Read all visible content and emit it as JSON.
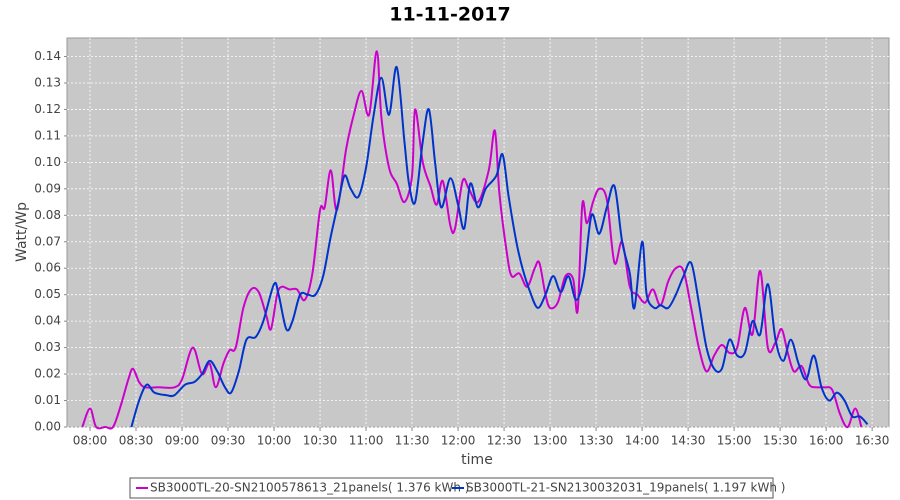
{
  "chart_data": {
    "type": "line",
    "title": "11-11-2017",
    "xlabel": "time",
    "ylabel": "Watt/Wp",
    "xlim": [
      "07:45",
      "16:41"
    ],
    "xticks": [
      "08:00",
      "08:30",
      "09:00",
      "09:30",
      "10:00",
      "10:30",
      "11:00",
      "11:30",
      "12:00",
      "12:30",
      "13:00",
      "13:30",
      "14:00",
      "14:30",
      "15:00",
      "15:30",
      "16:00",
      "16:30"
    ],
    "ylim": [
      0,
      0.147
    ],
    "yticks": [
      {
        "value": 0,
        "label": "0.00"
      },
      {
        "value": 0.01,
        "label": "0.01"
      },
      {
        "value": 0.02,
        "label": "0.02"
      },
      {
        "value": 0.03,
        "label": "0.03"
      },
      {
        "value": 0.04,
        "label": "0.04"
      },
      {
        "value": 0.05,
        "label": "0.05"
      },
      {
        "value": 0.06,
        "label": "0.06"
      },
      {
        "value": 0.07,
        "label": "0.07"
      },
      {
        "value": 0.08,
        "label": "0.08"
      },
      {
        "value": 0.09,
        "label": "0.09"
      },
      {
        "value": 0.1,
        "label": "0.10"
      },
      {
        "value": 0.11,
        "label": "0.11"
      },
      {
        "value": 0.12,
        "label": "0.12"
      },
      {
        "value": 0.13,
        "label": "0.13"
      },
      {
        "value": 0.14,
        "label": "0.14"
      }
    ],
    "grid": true,
    "legend": "bottom",
    "series": [
      {
        "name": "SB3000TL-20-SN2100578613_21panels( 1.376 kWh )",
        "color": "#cc00cc",
        "x": [
          "07:55",
          "08:00",
          "08:04",
          "08:10",
          "08:15",
          "08:20",
          "08:25",
          "08:28",
          "08:32",
          "08:36",
          "08:45",
          "08:55",
          "09:00",
          "09:07",
          "09:13",
          "09:18",
          "09:22",
          "09:27",
          "09:31",
          "09:35",
          "09:40",
          "09:45",
          "09:50",
          "09:55",
          "09:58",
          "10:02",
          "10:05",
          "10:10",
          "10:15",
          "10:20",
          "10:25",
          "10:30",
          "10:33",
          "10:37",
          "10:41",
          "10:47",
          "10:52",
          "10:57",
          "11:02",
          "11:07",
          "11:10",
          "11:15",
          "11:20",
          "11:25",
          "11:30",
          "11:32",
          "11:37",
          "11:42",
          "11:46",
          "11:50",
          "11:55",
          "11:58",
          "12:03",
          "12:07",
          "12:13",
          "12:20",
          "12:24",
          "12:27",
          "12:32",
          "12:35",
          "12:40",
          "12:45",
          "12:50",
          "12:53",
          "12:57",
          "13:00",
          "13:05",
          "13:10",
          "13:15",
          "13:18",
          "13:21",
          "13:24",
          "13:28",
          "13:32",
          "13:37",
          "13:42",
          "13:47",
          "13:52",
          "13:57",
          "14:02",
          "14:07",
          "14:12",
          "14:17",
          "14:22",
          "14:27",
          "14:32",
          "14:37",
          "14:42",
          "14:47",
          "14:52",
          "14:57",
          "15:02",
          "15:07",
          "15:12",
          "15:17",
          "15:22",
          "15:27",
          "15:31",
          "15:35",
          "15:39",
          "15:44",
          "15:49",
          "15:54",
          "15:59",
          "16:04",
          "16:09",
          "16:14",
          "16:19",
          "16:23"
        ],
        "values": [
          0,
          0.007,
          0,
          0,
          0,
          0.008,
          0.018,
          0.022,
          0.017,
          0.015,
          0.015,
          0.015,
          0.018,
          0.03,
          0.02,
          0.024,
          0.015,
          0.024,
          0.029,
          0.03,
          0.045,
          0.052,
          0.051,
          0.042,
          0.037,
          0.05,
          0.053,
          0.052,
          0.052,
          0.048,
          0.058,
          0.082,
          0.083,
          0.097,
          0.082,
          0.105,
          0.118,
          0.127,
          0.118,
          0.142,
          0.117,
          0.098,
          0.092,
          0.085,
          0.095,
          0.12,
          0.1,
          0.091,
          0.084,
          0.093,
          0.076,
          0.075,
          0.093,
          0.09,
          0.085,
          0.097,
          0.112,
          0.088,
          0.065,
          0.057,
          0.058,
          0.053,
          0.06,
          0.062,
          0.05,
          0.045,
          0.047,
          0.057,
          0.056,
          0.044,
          0.084,
          0.077,
          0.085,
          0.09,
          0.086,
          0.062,
          0.07,
          0.053,
          0.05,
          0.047,
          0.052,
          0.046,
          0.055,
          0.06,
          0.059,
          0.045,
          0.03,
          0.021,
          0.027,
          0.031,
          0.028,
          0.03,
          0.045,
          0.035,
          0.059,
          0.03,
          0.032,
          0.037,
          0.028,
          0.021,
          0.023,
          0.016,
          0.015,
          0.015,
          0.014,
          0.005,
          0,
          0.007,
          0
        ]
      },
      {
        "name": "SB3000TL-21-SN2130032031_19panels( 1.197 kWh )",
        "color": "#0033cc",
        "x": [
          "08:27",
          "08:32",
          "08:37",
          "08:42",
          "08:50",
          "08:55",
          "09:02",
          "09:08",
          "09:13",
          "09:18",
          "09:23",
          "09:28",
          "09:32",
          "09:37",
          "09:42",
          "09:48",
          "09:53",
          "10:00",
          "10:03",
          "10:08",
          "10:12",
          "10:17",
          "10:22",
          "10:27",
          "10:32",
          "10:37",
          "10:42",
          "10:46",
          "10:50",
          "10:55",
          "11:00",
          "11:05",
          "11:10",
          "11:15",
          "11:20",
          "11:25",
          "11:28",
          "11:32",
          "11:37",
          "11:41",
          "11:45",
          "11:49",
          "11:55",
          "12:00",
          "12:04",
          "12:08",
          "12:13",
          "12:18",
          "12:25",
          "12:29",
          "12:33",
          "12:38",
          "12:42",
          "12:47",
          "12:52",
          "12:57",
          "13:02",
          "13:07",
          "13:12",
          "13:17",
          "13:22",
          "13:27",
          "13:32",
          "13:37",
          "13:42",
          "13:47",
          "13:52",
          "13:55",
          "14:00",
          "14:03",
          "14:08",
          "14:12",
          "14:17",
          "14:22",
          "14:27",
          "14:32",
          "14:37",
          "14:42",
          "14:47",
          "14:52",
          "14:57",
          "15:02",
          "15:07",
          "15:12",
          "15:17",
          "15:22",
          "15:27",
          "15:32",
          "15:37",
          "15:42",
          "15:47",
          "15:52",
          "15:57",
          "16:02",
          "16:07",
          "16:12",
          "16:17",
          "16:22",
          "16:27"
        ],
        "values": [
          0,
          0.01,
          0.016,
          0.013,
          0.012,
          0.012,
          0.016,
          0.017,
          0.02,
          0.025,
          0.021,
          0.015,
          0.013,
          0.021,
          0.033,
          0.034,
          0.04,
          0.054,
          0.05,
          0.037,
          0.04,
          0.05,
          0.05,
          0.05,
          0.057,
          0.072,
          0.085,
          0.095,
          0.09,
          0.087,
          0.098,
          0.118,
          0.132,
          0.118,
          0.136,
          0.108,
          0.092,
          0.085,
          0.108,
          0.12,
          0.1,
          0.083,
          0.094,
          0.084,
          0.075,
          0.092,
          0.083,
          0.09,
          0.095,
          0.103,
          0.087,
          0.07,
          0.06,
          0.051,
          0.045,
          0.05,
          0.057,
          0.051,
          0.057,
          0.048,
          0.057,
          0.08,
          0.073,
          0.083,
          0.091,
          0.07,
          0.058,
          0.045,
          0.07,
          0.05,
          0.045,
          0.046,
          0.045,
          0.05,
          0.057,
          0.062,
          0.047,
          0.03,
          0.022,
          0.022,
          0.033,
          0.027,
          0.028,
          0.04,
          0.035,
          0.054,
          0.033,
          0.025,
          0.033,
          0.024,
          0.018,
          0.027,
          0.015,
          0.01,
          0.013,
          0.01,
          0.004,
          0.004,
          0.001
        ]
      }
    ]
  }
}
